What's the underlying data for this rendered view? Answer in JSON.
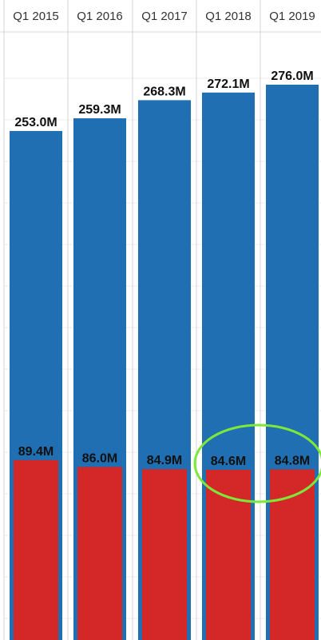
{
  "chart_data": {
    "type": "bar",
    "title": "",
    "xlabel": "",
    "ylabel": "",
    "categories": [
      "Q1 2015",
      "Q1 2016",
      "Q1 2017",
      "Q1 2018",
      "Q1 2019"
    ],
    "value_unit_suffix": "M",
    "series": [
      {
        "color": "#1f6fb2",
        "values": [
          253.0,
          259.3,
          268.3,
          272.1,
          276.0
        ],
        "labels": [
          "253.0M",
          "259.3M",
          "268.3M",
          "272.1M",
          "276.0M"
        ]
      },
      {
        "color": "#d42828",
        "values": [
          89.4,
          86.0,
          84.9,
          84.6,
          84.8
        ],
        "labels": [
          "89.4M",
          "86.0M",
          "84.9M",
          "84.6M",
          "84.8M"
        ]
      }
    ],
    "ylim": [
      0,
      276.0
    ],
    "grid": true,
    "annotations": [
      {
        "shape": "ellipse",
        "color": "#7ee83a",
        "highlights": [
          "84.6M",
          "84.8M"
        ]
      }
    ]
  }
}
